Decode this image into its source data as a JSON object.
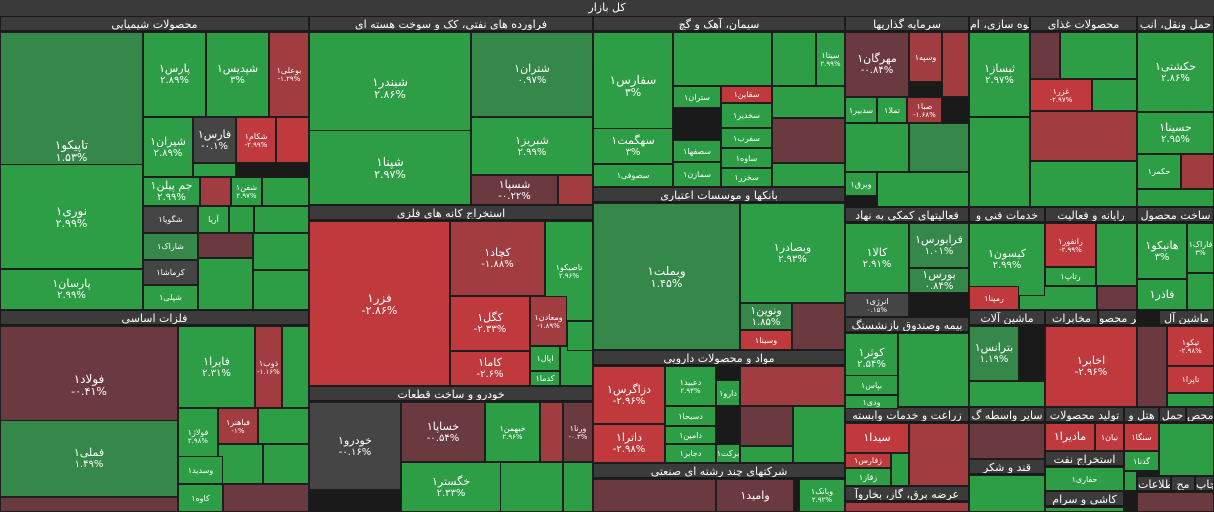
{
  "title": "کل بازار",
  "colors": {
    "strong_pos": "#2e9e46",
    "pos": "#35884a",
    "neutral": "#454545",
    "neg_dark": "#6b3a40",
    "neg": "#a13c40",
    "strong_neg": "#c0393c"
  },
  "sections": [
    {
      "id": "s1",
      "label": "محصولات شیمیایی"
    },
    {
      "id": "s2",
      "label": "فلزات اساسی"
    },
    {
      "id": "s3",
      "label": "فراورده های نفتی، کک و سوخت هسته ای"
    },
    {
      "id": "s4",
      "label": "استخراج کانه های فلزی"
    },
    {
      "id": "s5",
      "label": "خودرو و ساخت قطعات"
    },
    {
      "id": "s6",
      "label": "سیمان، آهک و گچ"
    },
    {
      "id": "s7",
      "label": "بانکها و موسسات اعتباری"
    },
    {
      "id": "s8",
      "label": "مواد و محصولات دارویی"
    },
    {
      "id": "s9",
      "label": "شرکتهای چند رشته ای صنعتی"
    },
    {
      "id": "s10",
      "label": "سرمایه گذاریها"
    },
    {
      "id": "s11",
      "label": "انبوه سازی، ام"
    },
    {
      "id": "s12",
      "label": "محصولات غذای"
    },
    {
      "id": "s13",
      "label": "حمل ونقل، انب"
    },
    {
      "id": "s14",
      "label": "فعالیتهای کمکی به نهاد"
    },
    {
      "id": "s15",
      "label": "خدمات فنی و"
    },
    {
      "id": "s16",
      "label": "رایانه و فعالیت"
    },
    {
      "id": "s17",
      "label": "ساخت محصول"
    },
    {
      "id": "s18",
      "label": "بیمه وصندوق بازنشستگ"
    },
    {
      "id": "s19",
      "label": "ماشین آلات"
    },
    {
      "id": "s20",
      "label": "مخابرات"
    },
    {
      "id": "s21",
      "label": "سایر محصو"
    },
    {
      "id": "s22",
      "label": "ماشین آل"
    },
    {
      "id": "s23",
      "label": "زراعت و خدمات وابسته"
    },
    {
      "id": "s24",
      "label": "سایر واسطه گ"
    },
    {
      "id": "s25",
      "label": "تولید محصولات"
    },
    {
      "id": "s26",
      "label": "هتل و"
    },
    {
      "id": "s27",
      "label": "حمل"
    },
    {
      "id": "s28",
      "label": "محص"
    },
    {
      "id": "s29",
      "label": "استخراج نفت"
    },
    {
      "id": "s30",
      "label": "قند و شکر"
    },
    {
      "id": "s31",
      "label": "عرضه برق، گاز، بخاروآ"
    },
    {
      "id": "s32",
      "label": "کاشی و سرام"
    },
    {
      "id": "s33",
      "label": "چاپ"
    },
    {
      "id": "s34",
      "label": "مح"
    },
    {
      "id": "s35",
      "label": "اطلاعات"
    }
  ],
  "chart_data": {
    "type": "treemap",
    "title": "کل بازار",
    "tiles": [
      {
        "name": "تاپیکو۱",
        "change": "۱.۵۳%",
        "color": "pos"
      },
      {
        "name": "پارس۱",
        "change": "۲.۸۹%",
        "color": "strong_pos"
      },
      {
        "name": "شپدیس۱",
        "change": "۳%",
        "color": "strong_pos"
      },
      {
        "name": "بوعلی۱",
        "change": "-۱.۲۹%",
        "color": "neg"
      },
      {
        "name": "نوری۱",
        "change": "۲.۹۹%",
        "color": "strong_pos"
      },
      {
        "name": "شیران۱",
        "change": "۲.۸۹%",
        "color": "strong_pos"
      },
      {
        "name": "فارس۱",
        "change": "-۰.۱%",
        "color": "neutral"
      },
      {
        "name": "شکام۱",
        "change": "-۲.۹۹%",
        "color": "strong_neg"
      },
      {
        "name": "جم پیلن۱",
        "change": "۲.۹۹%",
        "color": "strong_pos"
      },
      {
        "name": "شفن۱",
        "change": "۲.۹۷%",
        "color": "strong_pos"
      },
      {
        "name": "پارسان۱",
        "change": "۲.۹۹%",
        "color": "strong_pos"
      },
      {
        "name": "شگویا۱",
        "change": "",
        "color": "neutral"
      },
      {
        "name": "آریا",
        "change": "",
        "color": "strong_pos"
      },
      {
        "name": "شاراک۱",
        "change": "",
        "color": "pos"
      },
      {
        "name": "کرماشا۱",
        "change": "",
        "color": "neutral"
      },
      {
        "name": "شپلی۱",
        "change": "",
        "color": "strong_pos"
      },
      {
        "name": "فولاد۱",
        "change": "-۰.۴۱%",
        "color": "neg_dark"
      },
      {
        "name": "فایرا۱",
        "change": "۲.۳۱%",
        "color": "strong_pos"
      },
      {
        "name": "ذوب۱",
        "change": "-۱.۱۶%",
        "color": "neg"
      },
      {
        "name": "فولاژ۱",
        "change": "۲.۹۸%",
        "color": "strong_pos"
      },
      {
        "name": "فباهنر۱",
        "change": "-۱%",
        "color": "neg"
      },
      {
        "name": "فملی۱",
        "change": "۱.۴۹%",
        "color": "pos"
      },
      {
        "name": "وسدید۱",
        "change": "",
        "color": "strong_pos"
      },
      {
        "name": "کاوه۱",
        "change": "",
        "color": "strong_pos"
      },
      {
        "name": "شبندر۱",
        "change": "۲.۸۶%",
        "color": "strong_pos"
      },
      {
        "name": "شتران۱",
        "change": "۰.۹۷%",
        "color": "pos"
      },
      {
        "name": "شپنا۱",
        "change": "۲.۹۷%",
        "color": "strong_pos"
      },
      {
        "name": "شبریز۱",
        "change": "۲.۹۹%",
        "color": "strong_pos"
      },
      {
        "name": "شسپا۱",
        "change": "-۰.۲۲%",
        "color": "neg_dark"
      },
      {
        "name": "فزر۱",
        "change": "-۲.۸۶%",
        "color": "strong_neg"
      },
      {
        "name": "کچاد۱",
        "change": "-۱.۸۸%",
        "color": "neg"
      },
      {
        "name": "تاصیکو۱",
        "change": "۲.۹۶%",
        "color": "strong_pos"
      },
      {
        "name": "کگل۱",
        "change": "-۲.۳۳%",
        "color": "strong_neg"
      },
      {
        "name": "ومعادن۱",
        "change": "-۱.۸۹%",
        "color": "neg"
      },
      {
        "name": "کاما۱",
        "change": "-۲.۶%",
        "color": "strong_neg"
      },
      {
        "name": "اپال۱",
        "change": "",
        "color": "strong_pos"
      },
      {
        "name": "کدما۱",
        "change": "",
        "color": "strong_pos"
      },
      {
        "name": "خودرو۱",
        "change": "-۰.۱۶%",
        "color": "neutral"
      },
      {
        "name": "خساپا۱",
        "change": "-۰.۵۴%",
        "color": "neg_dark"
      },
      {
        "name": "خبهمن۱",
        "change": "۲.۹۶%",
        "color": "strong_pos"
      },
      {
        "name": "ورنا۱",
        "change": "-۰.۳%",
        "color": "neg_dark"
      },
      {
        "name": "خگستر۱",
        "change": "۲.۳۳%",
        "color": "strong_pos"
      },
      {
        "name": "سفارس۱",
        "change": "۳%",
        "color": "strong_pos"
      },
      {
        "name": "ستران۱",
        "change": "",
        "color": "strong_pos"
      },
      {
        "name": "سقاین۱",
        "change": "",
        "color": "strong_neg"
      },
      {
        "name": "سآبیک۱",
        "change": "",
        "color": "strong_pos"
      },
      {
        "name": "سخدیر۱",
        "change": "",
        "color": "strong_pos"
      },
      {
        "name": "سفرب۱",
        "change": "",
        "color": "strong_pos"
      },
      {
        "name": "سهگمت۱",
        "change": "۳%",
        "color": "strong_pos"
      },
      {
        "name": "سصفها۱",
        "change": "",
        "color": "strong_pos"
      },
      {
        "name": "ساوه۱",
        "change": "",
        "color": "strong_pos"
      },
      {
        "name": "سصوفی۱",
        "change": "",
        "color": "strong_pos"
      },
      {
        "name": "سمازن۱",
        "change": "",
        "color": "strong_pos"
      },
      {
        "name": "سخزر۱",
        "change": "",
        "color": "strong_pos"
      },
      {
        "name": "سیتا۱",
        "change": "۲.۹۹%",
        "color": "strong_pos"
      },
      {
        "name": "وبملت۱",
        "change": "۱.۴۵%",
        "color": "pos"
      },
      {
        "name": "وبصادر۱",
        "change": "۲.۹۳%",
        "color": "strong_pos"
      },
      {
        "name": "ونوین۱",
        "change": "۱.۸۵%",
        "color": "pos"
      },
      {
        "name": "وسینا۱",
        "change": "",
        "color": "strong_neg"
      },
      {
        "name": "دزاگرس۱",
        "change": "-۲.۹۶%",
        "color": "strong_neg"
      },
      {
        "name": "دعبید۱",
        "change": "۲.۹۴%",
        "color": "strong_pos"
      },
      {
        "name": "دارو۱",
        "change": "",
        "color": "strong_pos"
      },
      {
        "name": "دسبحا۱",
        "change": "",
        "color": "strong_pos"
      },
      {
        "name": "داترا۱",
        "change": "-۲.۹۸%",
        "color": "strong_neg"
      },
      {
        "name": "دامین۱",
        "change": "",
        "color": "strong_pos"
      },
      {
        "name": "دجابر۱",
        "change": "",
        "color": "strong_pos"
      },
      {
        "name": "برکت۱",
        "change": "",
        "color": "strong_pos"
      },
      {
        "name": "وامید۱",
        "change": "",
        "color": "neg_dark"
      },
      {
        "name": "وبانک۱",
        "change": "۲.۹۲%",
        "color": "strong_pos"
      },
      {
        "name": "مهرگان۱",
        "change": "-۰.۸۴%",
        "color": "neg_dark"
      },
      {
        "name": "وسپه۱",
        "change": "",
        "color": "neg"
      },
      {
        "name": "سدبیر۱",
        "change": "",
        "color": "strong_pos"
      },
      {
        "name": "تملا۱",
        "change": "",
        "color": "strong_pos"
      },
      {
        "name": "صبا۱",
        "change": "-۱.۶۸%",
        "color": "neg"
      },
      {
        "name": "وبرق۱",
        "change": "",
        "color": "strong_pos"
      },
      {
        "name": "ثبساز۱",
        "change": "۲.۹۷%",
        "color": "strong_pos"
      },
      {
        "name": "غزر۱",
        "change": "-۲.۹۷%",
        "color": "strong_neg"
      },
      {
        "name": "حکشتی۱",
        "change": "۲.۸۶%",
        "color": "strong_pos"
      },
      {
        "name": "حسینا۱",
        "change": "۲.۹۵%",
        "color": "strong_pos"
      },
      {
        "name": "حکمر۱",
        "change": "",
        "color": "strong_pos"
      },
      {
        "name": "کالا۱",
        "change": "۲.۹۱%",
        "color": "strong_pos"
      },
      {
        "name": "فرابورس۱",
        "change": "۱.۰۱%",
        "color": "pos"
      },
      {
        "name": "بورس۱",
        "change": "۰.۸۴%",
        "color": "pos"
      },
      {
        "name": "انرژی۱",
        "change": "۰.۱۵%",
        "color": "neutral"
      },
      {
        "name": "کیسون۱",
        "change": "۲.۹۹%",
        "color": "strong_pos"
      },
      {
        "name": "رانفور۱",
        "change": "-۲.۹۹%",
        "color": "strong_neg"
      },
      {
        "name": "رتاپ۱",
        "change": "",
        "color": "strong_pos"
      },
      {
        "name": "رمپنا۱",
        "change": "",
        "color": "strong_neg"
      },
      {
        "name": "هانیکو۱",
        "change": "۳%",
        "color": "strong_pos"
      },
      {
        "name": "فاراک۱",
        "change": "۳%",
        "color": "strong_pos"
      },
      {
        "name": "فاذر۱",
        "change": "",
        "color": "strong_pos"
      },
      {
        "name": "کوثر۱",
        "change": "۲.۵۴%",
        "color": "strong_pos"
      },
      {
        "name": "بپاس۱",
        "change": "",
        "color": "strong_pos"
      },
      {
        "name": "ودی۱",
        "change": "",
        "color": "strong_pos"
      },
      {
        "name": "بترانس۱",
        "change": "۱.۱۹%",
        "color": "pos"
      },
      {
        "name": "اخابر۱",
        "change": "-۲.۹۶%",
        "color": "strong_neg"
      },
      {
        "name": "تیکو۱",
        "change": "-۲.۹۸%",
        "color": "strong_neg"
      },
      {
        "name": "تاپرا۱",
        "change": "",
        "color": "strong_neg"
      },
      {
        "name": "سیدا۱",
        "change": "",
        "color": "strong_neg"
      },
      {
        "name": "زفارس۱",
        "change": "",
        "color": "strong_neg"
      },
      {
        "name": "زقاز۱",
        "change": "",
        "color": "strong_pos"
      },
      {
        "name": "مادیرا۱",
        "change": "",
        "color": "strong_neg"
      },
      {
        "name": "نیان۱",
        "change": "",
        "color": "strong_neg"
      },
      {
        "name": "سنگا۱",
        "change": "",
        "color": "strong_neg"
      },
      {
        "name": "گدنا۱",
        "change": "",
        "color": "strong_pos"
      },
      {
        "name": "حفاری۱",
        "change": "",
        "color": "strong_pos"
      }
    ]
  }
}
